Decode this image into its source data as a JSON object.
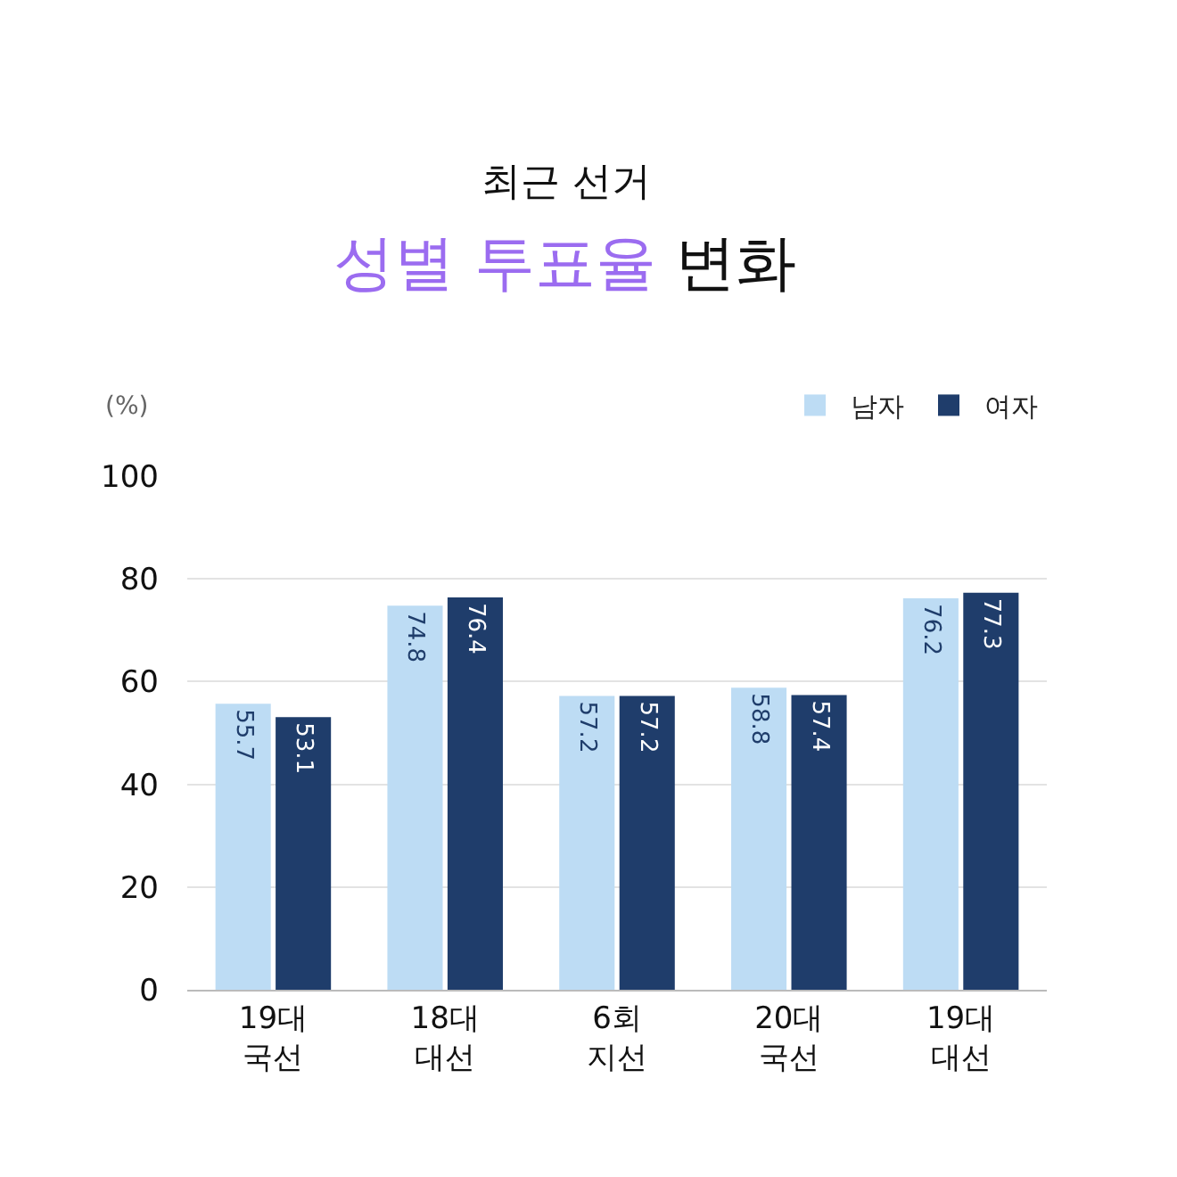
{
  "chart_data": {
    "type": "bar",
    "subtitle": "최근 선거",
    "title": "성별 투표율 변화",
    "ylabel": "(%)",
    "categories": [
      "19대\n국선",
      "18대\n대선",
      "6회\n지선",
      "20대\n국선",
      "19대\n대선"
    ],
    "series": [
      {
        "name": "남자",
        "color": "#bddcf4",
        "values": [
          55.7,
          74.8,
          57.2,
          58.8,
          76.2
        ]
      },
      {
        "name": "여자",
        "color": "#1f3d6b",
        "values": [
          53.1,
          76.4,
          57.2,
          57.4,
          77.3
        ]
      }
    ],
    "ylim": [
      0,
      100
    ],
    "yticks": [
      0,
      20,
      40,
      60,
      80,
      100
    ],
    "grid": "y",
    "legend": "top right",
    "data_labels": true
  }
}
